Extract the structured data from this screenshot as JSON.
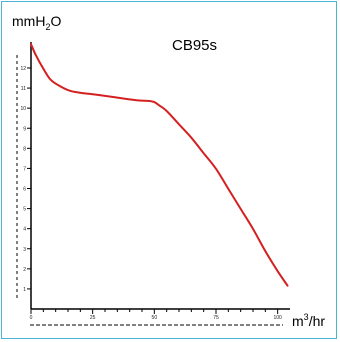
{
  "chart_data": {
    "type": "line",
    "title": "CB95s",
    "ylabel_base": "mmH",
    "ylabel_sub": "2",
    "ylabel_tail": "O",
    "xlabel_base": "m",
    "xlabel_sup": "3",
    "xlabel_tail": "/hr",
    "ylim": [
      0,
      12
    ],
    "xlim": [
      0,
      105
    ],
    "y_ticks": [
      "1",
      "2",
      "3",
      "4",
      "5",
      "6",
      "7",
      "8",
      "9",
      "10",
      "11",
      "12"
    ],
    "x_ticks": [
      "0",
      "25",
      "50",
      "75",
      "100"
    ],
    "line_color": "#d42020",
    "grid": false,
    "series": [
      {
        "x": [
          0,
          2,
          5,
          8,
          12,
          16,
          20,
          25,
          30,
          35,
          40,
          44,
          48,
          50,
          52,
          55,
          60,
          65,
          70,
          75,
          80,
          85,
          90,
          95,
          100,
          104
        ],
        "y": [
          11.9,
          11.4,
          10.8,
          10.3,
          10.0,
          9.8,
          9.72,
          9.65,
          9.58,
          9.5,
          9.42,
          9.37,
          9.35,
          9.3,
          9.15,
          8.9,
          8.3,
          7.7,
          7.0,
          6.3,
          5.4,
          4.5,
          3.6,
          2.6,
          1.7,
          1.05
        ]
      }
    ]
  }
}
